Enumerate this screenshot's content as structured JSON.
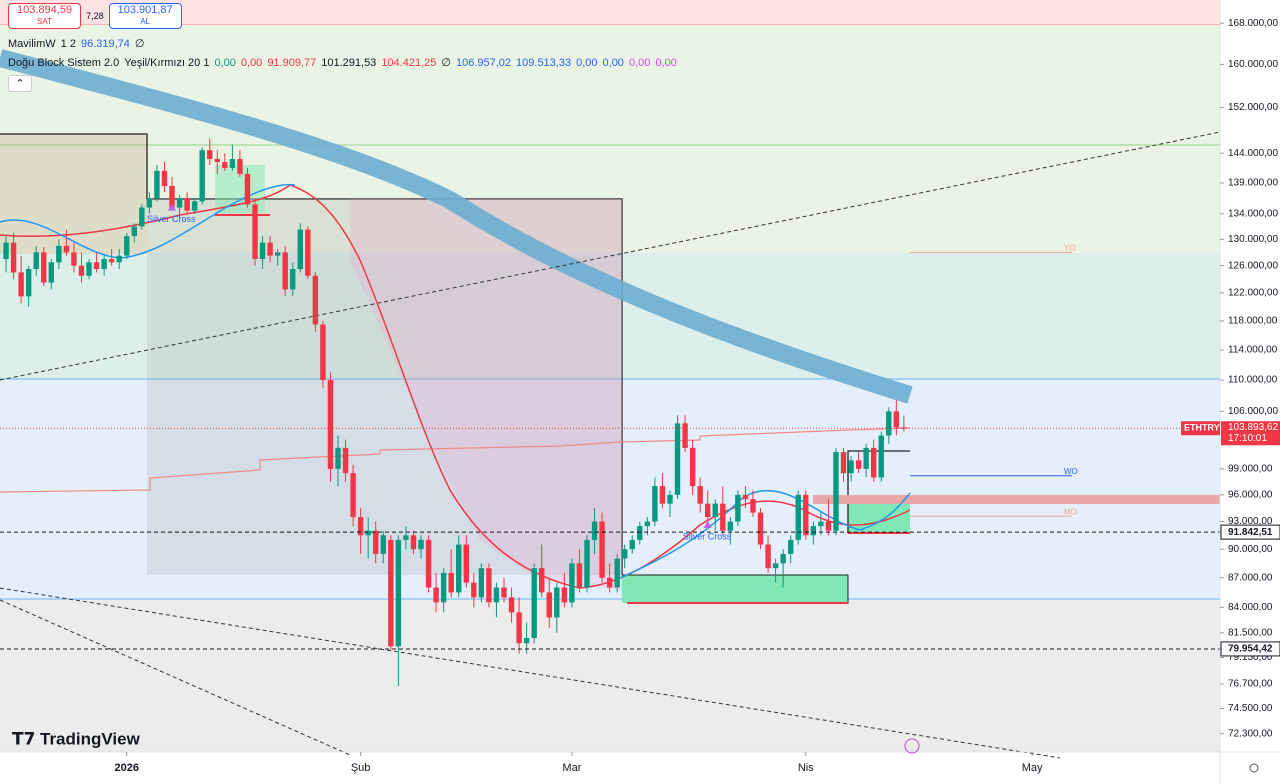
{
  "header": {
    "sell_price": "103.894,59",
    "sell_label": "SAT",
    "spread": "7,28",
    "buy_price": "103.901,87",
    "buy_label": "AL"
  },
  "indicators": [
    {
      "tokens": [
        {
          "text": "MavilimW",
          "color": "#131722"
        },
        {
          "text": "1 2",
          "color": "#131722"
        },
        {
          "text": "96.319,74",
          "color": "#2962ff"
        },
        {
          "text": "∅",
          "color": "#131722"
        }
      ]
    },
    {
      "tokens": [
        {
          "text": "Doğu Block Sistem 2.0",
          "color": "#131722"
        },
        {
          "text": "Yeşil/Kırmızı 20 1",
          "color": "#131722"
        },
        {
          "text": "0,00",
          "color": "#089981"
        },
        {
          "text": "0,00",
          "color": "#f23645"
        },
        {
          "text": "91.909,77",
          "color": "#f23645"
        },
        {
          "text": "101.291,53",
          "color": "#131722"
        },
        {
          "text": "104.421,25",
          "color": "#f23645"
        },
        {
          "text": "∅",
          "color": "#131722"
        },
        {
          "text": "106.957,02",
          "color": "#2962ff"
        },
        {
          "text": "109.513,33",
          "color": "#2962ff"
        },
        {
          "text": "0,00",
          "color": "#2962ff"
        },
        {
          "text": "0,00",
          "color": "#2962ff"
        },
        {
          "text": "0,00",
          "color": "#e040fb"
        },
        {
          "text": "0,00",
          "color": "#e040fb"
        }
      ]
    }
  ],
  "brand": "TradingView",
  "chart_data": {
    "type": "candlestick",
    "log_scale": true,
    "up_color": "#089981",
    "down_color": "#f23645",
    "xlim": [
      -0.8,
      160.9
    ],
    "xticks": [
      {
        "value": 16,
        "label": "2026"
      },
      {
        "value": 47,
        "label": "Şub"
      },
      {
        "value": 75,
        "label": "Mar"
      },
      {
        "value": 106,
        "label": "Nis"
      },
      {
        "value": 136,
        "label": "May"
      }
    ],
    "ylim": [
      70750,
      172700
    ],
    "yticks": [
      {
        "value": 168000,
        "label": "168.000,00"
      },
      {
        "value": 160000,
        "label": "160.000,00"
      },
      {
        "value": 152000,
        "label": "152.000,00"
      },
      {
        "value": 144000,
        "label": "144.000,00"
      },
      {
        "value": 139000,
        "label": "139.000,00"
      },
      {
        "value": 134000,
        "label": "134.000,00"
      },
      {
        "value": 130000,
        "label": "130.000,00"
      },
      {
        "value": 126000,
        "label": "126.000,00"
      },
      {
        "value": 122000,
        "label": "122.000,00"
      },
      {
        "value": 118000,
        "label": "118.000,00"
      },
      {
        "value": 114000,
        "label": "114.000,00"
      },
      {
        "value": 110000,
        "label": "110.000,00"
      },
      {
        "value": 106000,
        "label": "106.000,00"
      },
      {
        "value": 99000,
        "label": "99.000,00"
      },
      {
        "value": 96000,
        "label": "96.000,00"
      },
      {
        "value": 93000,
        "label": "93.000,00"
      },
      {
        "value": 90000,
        "label": "90.000,00"
      },
      {
        "value": 87000,
        "label": "87.000,00"
      },
      {
        "value": 84000,
        "label": "84.000,00"
      },
      {
        "value": 81500,
        "label": "81.500,00"
      },
      {
        "value": 79150,
        "label": "79.150,00"
      },
      {
        "value": 76700,
        "label": "76.700,00"
      },
      {
        "value": 74500,
        "label": "74.500,00"
      },
      {
        "value": 72300,
        "label": "72.300,00"
      }
    ],
    "price_tags": [
      {
        "value": 103893.62,
        "label": "103.893,62",
        "symbol": "ETHTRY",
        "countdown": "17:10:01",
        "color": "#f23645"
      },
      {
        "value": 91842.51,
        "label": "91.842,51",
        "color": "#131722"
      },
      {
        "value": 79954.42,
        "label": "79.954,42",
        "color": "#131722"
      }
    ],
    "levels": [
      {
        "label": "YO",
        "value": 128000,
        "color": "#f7a08f"
      },
      {
        "label": "WO",
        "value": 98200,
        "color": "#2962ff"
      },
      {
        "label": "MO",
        "value": 93600,
        "color": "#f7a08f"
      }
    ],
    "annotations": [
      {
        "text": "Silver Cross",
        "x": 22,
        "y": 134500
      },
      {
        "text": "Silver Cross",
        "x": 93,
        "y": 92300
      }
    ],
    "ohlc": [
      [
        127000,
        130500,
        125000,
        129500
      ],
      [
        129500,
        131000,
        124000,
        125000
      ],
      [
        125000,
        127500,
        120500,
        121500
      ],
      [
        121500,
        126000,
        120000,
        125500
      ],
      [
        125500,
        129000,
        124500,
        128000
      ],
      [
        128000,
        128800,
        123000,
        123500
      ],
      [
        123500,
        127000,
        122500,
        126500
      ],
      [
        126500,
        130000,
        125500,
        129000
      ],
      [
        129000,
        131500,
        127500,
        128000
      ],
      [
        128000,
        129500,
        125000,
        126000
      ],
      [
        126000,
        128000,
        123500,
        124500
      ],
      [
        124500,
        127000,
        124000,
        126500
      ],
      [
        126500,
        128000,
        125000,
        125500
      ],
      [
        125500,
        127500,
        124500,
        127000
      ],
      [
        127000,
        128500,
        126000,
        126500
      ],
      [
        126500,
        128500,
        125500,
        127500
      ],
      [
        127500,
        131000,
        127000,
        130500
      ],
      [
        130500,
        132500,
        129500,
        132000
      ],
      [
        132000,
        135500,
        131500,
        135000
      ],
      [
        135000,
        137500,
        134000,
        136500
      ],
      [
        136500,
        142000,
        136000,
        141000
      ],
      [
        141000,
        142500,
        137500,
        138500
      ],
      [
        138500,
        140000,
        134500,
        135000
      ],
      [
        135000,
        137000,
        133500,
        136500
      ],
      [
        136500,
        137500,
        134000,
        134500
      ],
      [
        134500,
        136500,
        134000,
        136000
      ],
      [
        136000,
        145000,
        135500,
        144500
      ],
      [
        144500,
        146500,
        142000,
        143000
      ],
      [
        143000,
        144500,
        140500,
        142500
      ],
      [
        142500,
        144000,
        141000,
        141500
      ],
      [
        141500,
        145500,
        141000,
        143000
      ],
      [
        143000,
        144500,
        140000,
        140500
      ],
      [
        140500,
        141500,
        135000,
        135500
      ],
      [
        135500,
        136500,
        126000,
        127000
      ],
      [
        127000,
        130500,
        125500,
        129500
      ],
      [
        129500,
        130500,
        126500,
        127500
      ],
      [
        127500,
        128500,
        126000,
        128000
      ],
      [
        128000,
        129000,
        121500,
        122500
      ],
      [
        122500,
        126500,
        121500,
        125500
      ],
      [
        125500,
        132500,
        125000,
        131500
      ],
      [
        131500,
        132000,
        124000,
        124500
      ],
      [
        124500,
        125000,
        116500,
        117500
      ],
      [
        117500,
        118000,
        109000,
        110000
      ],
      [
        110000,
        111000,
        97500,
        99000
      ],
      [
        99000,
        103000,
        97000,
        101500
      ],
      [
        101500,
        102500,
        97500,
        98500
      ],
      [
        98500,
        99500,
        92500,
        93500
      ],
      [
        93500,
        94500,
        89500,
        91500
      ],
      [
        91500,
        93500,
        89000,
        92000
      ],
      [
        92000,
        93000,
        88500,
        89500
      ],
      [
        89500,
        92000,
        88500,
        91500
      ],
      [
        91000,
        91500,
        79800,
        80200
      ],
      [
        80200,
        91500,
        76500,
        91000
      ],
      [
        91000,
        92500,
        90000,
        91500
      ],
      [
        91500,
        92000,
        89500,
        90000
      ],
      [
        90000,
        91500,
        89000,
        91000
      ],
      [
        91000,
        91500,
        85500,
        86000
      ],
      [
        86000,
        87500,
        83500,
        84500
      ],
      [
        84500,
        88000,
        83500,
        87500
      ],
      [
        87500,
        90000,
        85000,
        85500
      ],
      [
        85500,
        91500,
        85000,
        90500
      ],
      [
        90500,
        91500,
        86000,
        86500
      ],
      [
        86500,
        87500,
        84000,
        85000
      ],
      [
        85000,
        88500,
        84500,
        88000
      ],
      [
        88000,
        88500,
        84000,
        84500
      ],
      [
        84500,
        86500,
        83000,
        86000
      ],
      [
        86000,
        87000,
        84500,
        85000
      ],
      [
        85000,
        86000,
        82500,
        83500
      ],
      [
        83500,
        85000,
        79500,
        80500
      ],
      [
        80500,
        82500,
        79500,
        81000
      ],
      [
        81000,
        88500,
        80500,
        88000
      ],
      [
        88000,
        90500,
        85000,
        85500
      ],
      [
        85500,
        87000,
        82000,
        83000
      ],
      [
        83000,
        86500,
        81500,
        86000
      ],
      [
        86000,
        87500,
        84000,
        84500
      ],
      [
        84500,
        89000,
        84000,
        88500
      ],
      [
        88500,
        90000,
        85500,
        86000
      ],
      [
        86000,
        91500,
        85500,
        91000
      ],
      [
        91000,
        94500,
        89500,
        93000
      ],
      [
        93000,
        94000,
        86500,
        87000
      ],
      [
        87000,
        88500,
        85500,
        86000
      ],
      [
        86000,
        89500,
        85500,
        89000
      ],
      [
        89000,
        90500,
        88000,
        90000
      ],
      [
        90000,
        91500,
        89500,
        91000
      ],
      [
        91000,
        93000,
        90500,
        92500
      ],
      [
        92500,
        93500,
        91500,
        93000
      ],
      [
        93000,
        98000,
        92500,
        97000
      ],
      [
        97000,
        98500,
        94500,
        95000
      ],
      [
        95000,
        96500,
        93500,
        96000
      ],
      [
        96000,
        105500,
        95500,
        104500
      ],
      [
        104500,
        105500,
        101000,
        101500
      ],
      [
        101500,
        102500,
        96000,
        97000
      ],
      [
        97000,
        98000,
        94000,
        95000
      ],
      [
        95000,
        96500,
        93000,
        93500
      ],
      [
        93500,
        95500,
        92000,
        95000
      ],
      [
        95000,
        97000,
        91500,
        92000
      ],
      [
        92000,
        93500,
        90500,
        93000
      ],
      [
        93000,
        96500,
        92500,
        96000
      ],
      [
        96000,
        97000,
        94500,
        95500
      ],
      [
        95500,
        96500,
        93500,
        94000
      ],
      [
        94000,
        94500,
        90000,
        90500
      ],
      [
        90500,
        91500,
        87500,
        88000
      ],
      [
        88000,
        89000,
        86500,
        88500
      ],
      [
        88500,
        90000,
        86000,
        89500
      ],
      [
        89500,
        91500,
        88500,
        91000
      ],
      [
        91000,
        96500,
        90500,
        96000
      ],
      [
        96000,
        96500,
        91000,
        91500
      ],
      [
        91500,
        93000,
        90500,
        92500
      ],
      [
        92500,
        94000,
        91500,
        93000
      ],
      [
        93000,
        95500,
        91500,
        92000
      ],
      [
        92000,
        101500,
        91500,
        101000
      ],
      [
        101000,
        101500,
        97500,
        98500
      ],
      [
        98500,
        100500,
        97500,
        100000
      ],
      [
        100000,
        101000,
        98500,
        99000
      ],
      [
        99000,
        102000,
        98000,
        101500
      ],
      [
        101500,
        102500,
        97500,
        98000
      ],
      [
        98000,
        103500,
        97500,
        103000
      ],
      [
        103000,
        106500,
        102000,
        106000
      ],
      [
        106000,
        107500,
        103000,
        104000
      ],
      [
        104000,
        105500,
        103500,
        103893.62
      ]
    ]
  }
}
